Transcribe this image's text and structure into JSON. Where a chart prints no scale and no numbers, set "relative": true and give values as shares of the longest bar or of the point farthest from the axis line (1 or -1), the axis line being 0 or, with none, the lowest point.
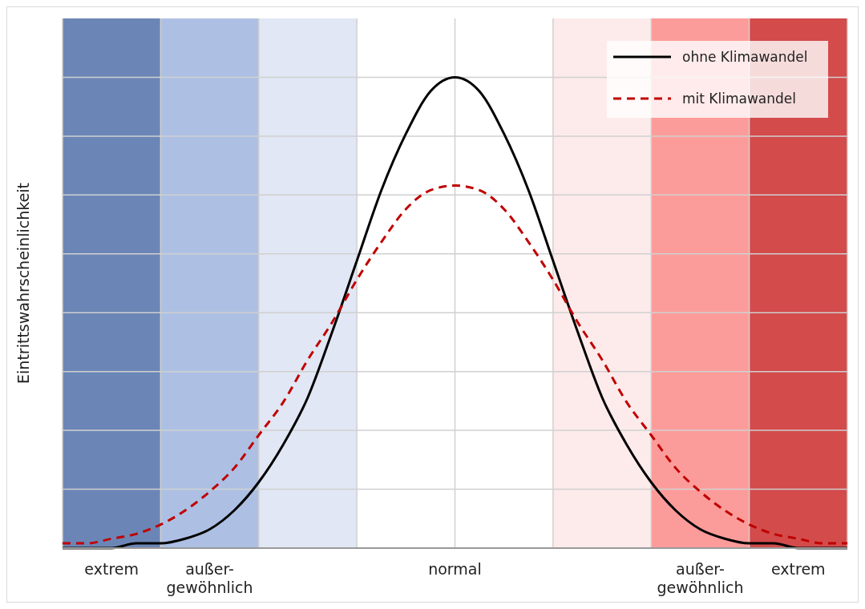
{
  "chart_data": {
    "type": "line",
    "relative": true,
    "ylabel": "Eintrittswahrscheinlichkeit",
    "categories": [
      null,
      null,
      "extrem",
      null,
      null,
      null,
      "außer-\ngewöhnlich",
      null,
      null,
      null,
      null,
      null,
      null,
      null,
      null,
      null,
      "normal",
      null,
      null,
      null,
      null,
      null,
      null,
      null,
      null,
      null,
      "außer-\ngewöhnlich",
      null,
      null,
      null,
      "extrem",
      null,
      null
    ],
    "series": [
      {
        "name": "ohne Klimawandel",
        "color": "#000000",
        "line_style": "solid",
        "values": [
          0,
          0,
          0,
          0.01,
          0.01,
          0.02,
          0.04,
          0.08,
          0.14,
          0.22,
          0.32,
          0.46,
          0.61,
          0.76,
          0.88,
          0.97,
          1,
          0.97,
          0.88,
          0.76,
          0.61,
          0.46,
          0.32,
          0.22,
          0.14,
          0.08,
          0.04,
          0.02,
          0.01,
          0.01,
          0,
          0,
          0
        ]
      },
      {
        "name": "mit Klimawandel",
        "color": "#c00000",
        "line_style": "dashed",
        "values": [
          0.01,
          0.01,
          0.02,
          0.03,
          0.05,
          0.08,
          0.12,
          0.17,
          0.24,
          0.31,
          0.4,
          0.48,
          0.57,
          0.65,
          0.72,
          0.76,
          0.77,
          0.76,
          0.72,
          0.65,
          0.57,
          0.48,
          0.4,
          0.31,
          0.24,
          0.17,
          0.12,
          0.08,
          0.05,
          0.03,
          0.02,
          0.01,
          0.01
        ]
      }
    ],
    "grid": true,
    "legend": "top right",
    "marker": "none"
  }
}
